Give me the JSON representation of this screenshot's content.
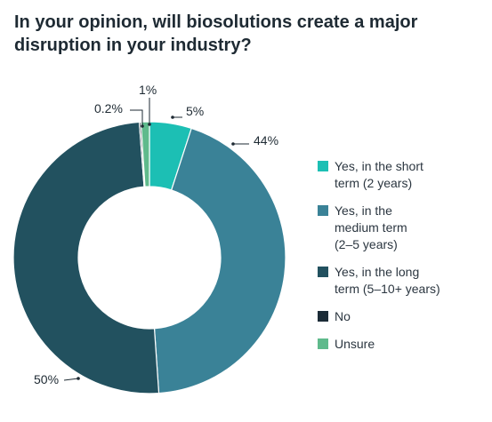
{
  "chart_data": {
    "type": "pie",
    "title": "In your opinion, will biosolutions create a major disruption in your industry?",
    "categories": [
      "Yes, in the short term (2 years)",
      "Yes, in the medium term (2–5 years)",
      "Yes, in the long term (5–10+ years)",
      "No",
      "Unsure"
    ],
    "values": [
      5,
      44,
      50,
      0.2,
      1
    ],
    "data_labels": [
      "5%",
      "44%",
      "50%",
      "0.2%",
      "1%"
    ],
    "colors": [
      "#1cbfb4",
      "#3a8297",
      "#22515f",
      "#1b2b37",
      "#5fba8c"
    ],
    "legend_labels": [
      "Yes, in the short\nterm (2 years)",
      "Yes, in the\nmedium term\n(2–5 years)",
      "Yes, in the long\nterm (5–10+ years)",
      "No",
      "Unsure"
    ],
    "legend_position": "right",
    "donut": true
  }
}
